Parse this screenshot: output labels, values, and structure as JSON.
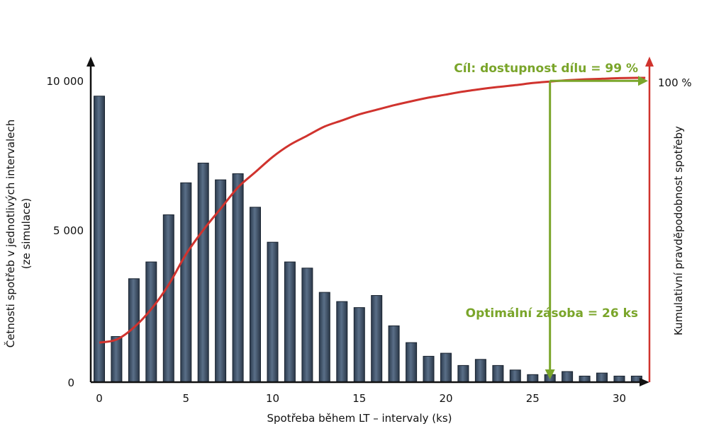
{
  "chart_data": {
    "type": "bar",
    "xlabel": "Spotřeba během LT – intervaly (ks)",
    "ylabel_left_line1": "Četnosti spotřeb v jednotlivých intervalech",
    "ylabel_left_line2": "(ze simulace)",
    "ylabel_right": "Kumulativní pravděpodobnost spotřeby",
    "x_ticks": [
      "0",
      "5",
      "10",
      "15",
      "20",
      "25",
      "30"
    ],
    "y_ticks_left": [
      "0",
      "5 000",
      "10 000"
    ],
    "y_tick_right": "100 %",
    "ylim": [
      0,
      10000
    ],
    "categories": [
      0,
      1,
      2,
      3,
      4,
      5,
      6,
      7,
      8,
      9,
      10,
      11,
      12,
      13,
      14,
      15,
      16,
      17,
      18,
      19,
      20,
      21,
      22,
      23,
      24,
      25,
      26,
      27,
      28,
      29,
      30,
      31
    ],
    "values": [
      9400,
      1500,
      3400,
      3950,
      5500,
      6550,
      7200,
      6650,
      6850,
      5750,
      4600,
      3950,
      3750,
      2950,
      2650,
      2450,
      2850,
      1850,
      1300,
      850,
      950,
      550,
      750,
      550,
      400,
      250,
      250,
      350,
      200,
      300,
      200,
      200
    ],
    "cumulative_curve": {
      "name": "Kumulativní pravděpodobnost spotřeby",
      "x": [
        0,
        1,
        2,
        3,
        4,
        5,
        6,
        7,
        8,
        9,
        10,
        11,
        12,
        13,
        14,
        15,
        16,
        17,
        18,
        19,
        20,
        21,
        22,
        23,
        24,
        25,
        26,
        27,
        28,
        29,
        30,
        31
      ],
      "y_percent": [
        13,
        14,
        18,
        24,
        32,
        42,
        50,
        57,
        64,
        69,
        74,
        78,
        81,
        84,
        86,
        88,
        89.5,
        91,
        92.3,
        93.5,
        94.5,
        95.5,
        96.3,
        97,
        97.6,
        98.3,
        98.8,
        99.2,
        99.5,
        99.7,
        99.9,
        100
      ]
    },
    "annotations": {
      "goal": "Cíl: dostupnost dílu = 99 %",
      "optimal": "Optimální zásoba = 26 ks"
    },
    "goal_availability_percent": 99,
    "optimal_stock": 26,
    "colors": {
      "bar_fill": "#3c4f66",
      "bar_stroke": "#1a2430",
      "curve": "#d0332e",
      "right_axis": "#d0332e",
      "annotation": "#7aa52a",
      "axis": "#111111"
    }
  }
}
